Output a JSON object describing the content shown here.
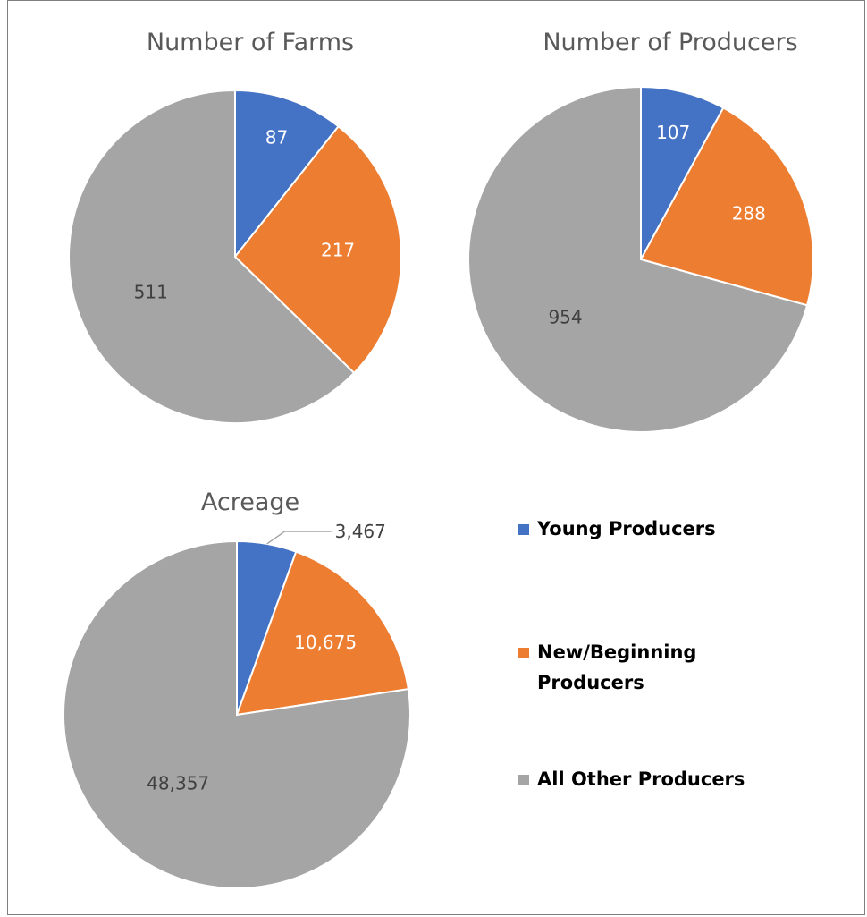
{
  "chart_data": [
    {
      "type": "pie",
      "title": "Number of Farms",
      "categories": [
        "Young Producers",
        "New/Beginning Producers",
        "All Other Producers"
      ],
      "values": [
        87,
        217,
        511
      ],
      "labels": [
        "87",
        "217",
        "511"
      ],
      "colors": [
        "#4472c4",
        "#ed7d31",
        "#a5a5a5"
      ]
    },
    {
      "type": "pie",
      "title": "Number of Producers",
      "categories": [
        "Young Producers",
        "New/Beginning Producers",
        "All Other Producers"
      ],
      "values": [
        107,
        288,
        954
      ],
      "labels": [
        "107",
        "288",
        "954"
      ],
      "colors": [
        "#4472c4",
        "#ed7d31",
        "#a5a5a5"
      ]
    },
    {
      "type": "pie",
      "title": "Acreage",
      "categories": [
        "Young Producers",
        "New/Beginning Producers",
        "All Other Producers"
      ],
      "values": [
        3467,
        10675,
        48357
      ],
      "labels": [
        "3,467",
        "10,675",
        "48,357"
      ],
      "colors": [
        "#4472c4",
        "#ed7d31",
        "#a5a5a5"
      ]
    }
  ],
  "legend": {
    "position": "right",
    "items": [
      {
        "label": "Young Producers",
        "color": "#4472c4"
      },
      {
        "label": "New/Beginning Producers",
        "color": "#ed7d31"
      },
      {
        "label": "All Other Producers",
        "color": "#a5a5a5"
      }
    ]
  }
}
